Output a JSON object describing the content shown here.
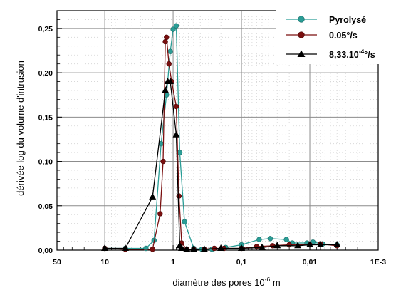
{
  "chart_data": {
    "type": "line",
    "xscale": "log",
    "x_reversed": true,
    "xlim": [
      50,
      0.001
    ],
    "ylim": [
      0,
      0.27
    ],
    "grid": true,
    "legend_position": "top-right",
    "xlabel": "diamètre des pores 10",
    "xlabel_sup": "-6",
    "xlabel_unit": " m",
    "ylabel": "dérivée log du volume d'intrusion",
    "x_ticks": [
      {
        "value": 50,
        "label": "50"
      },
      {
        "value": 10,
        "label": "10"
      },
      {
        "value": 1,
        "label": "1"
      },
      {
        "value": 0.1,
        "label": "0,1"
      },
      {
        "value": 0.01,
        "label": "0,01"
      },
      {
        "value": 0.001,
        "label": "1E-3"
      }
    ],
    "y_ticks": [
      {
        "value": 0,
        "label": "0,00"
      },
      {
        "value": 0.05,
        "label": "0,05"
      },
      {
        "value": 0.1,
        "label": "0,10"
      },
      {
        "value": 0.15,
        "label": "0,15"
      },
      {
        "value": 0.2,
        "label": "0,20"
      },
      {
        "value": 0.25,
        "label": "0,25"
      }
    ],
    "series": [
      {
        "name": "Pyrolysé",
        "color": "#2a9d96",
        "marker": "circle",
        "x": [
          10,
          5,
          2.5,
          1.9,
          1.5,
          1.25,
          1.1,
          1.0,
          0.9,
          0.8,
          0.68,
          0.5,
          0.38,
          0.27,
          0.17,
          0.1,
          0.055,
          0.038,
          0.022,
          0.018,
          0.011,
          0.009,
          0.0065,
          0.004
        ],
        "y": [
          0.002,
          0.002,
          0.002,
          0.011,
          0.12,
          0.175,
          0.224,
          0.249,
          0.253,
          0.11,
          0.032,
          0.002,
          0.001,
          0.001,
          0.003,
          0.006,
          0.012,
          0.013,
          0.012,
          0.008,
          0.008,
          0.009,
          0.007,
          0.006
        ]
      },
      {
        "name": "0.05°/s",
        "color": "#7a0f0f",
        "marker": "circle",
        "x": [
          10,
          5,
          2.0,
          1.55,
          1.4,
          1.3,
          1.25,
          1.15,
          1.05,
          0.9,
          0.82,
          0.75,
          0.63,
          0.5,
          0.35,
          0.25,
          0.18,
          0.1,
          0.06,
          0.035,
          0.02,
          0.01,
          0.007,
          0.004
        ],
        "y": [
          0.002,
          0.001,
          0.001,
          0.041,
          0.1,
          0.235,
          0.24,
          0.21,
          0.19,
          0.162,
          0.061,
          0.008,
          0.001,
          0.001,
          0.001,
          0.002,
          0.002,
          0.002,
          0.004,
          0.005,
          0.006,
          0.006,
          0.007,
          0.005
        ]
      },
      {
        "name": "8,33.10",
        "name_sup": "-4",
        "name_suffix": "°/s",
        "color": "#000000",
        "marker": "triangle",
        "x": [
          10,
          5,
          2.0,
          1.3,
          1.2,
          1.1,
          0.9,
          0.8,
          0.75,
          0.63,
          0.5,
          0.35,
          0.2,
          0.1,
          0.05,
          0.03,
          0.015,
          0.01,
          0.007,
          0.004
        ],
        "y": [
          0.002,
          0.002,
          0.06,
          0.18,
          0.19,
          0.19,
          0.13,
          0.005,
          0.002,
          0.001,
          0.001,
          0.001,
          0.002,
          0.002,
          0.003,
          0.005,
          0.005,
          0.006,
          0.006,
          0.006
        ]
      }
    ]
  }
}
